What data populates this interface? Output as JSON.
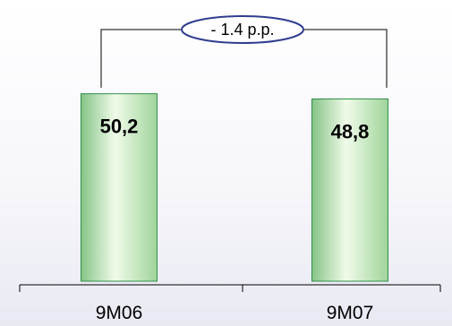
{
  "chart_data": {
    "type": "bar",
    "categories": [
      "9M06",
      "9M07"
    ],
    "values": [
      50.2,
      48.8
    ],
    "value_labels": [
      "50,2",
      "48,8"
    ],
    "ylim": [
      0,
      60
    ],
    "grid": false,
    "legend": "none",
    "annotation": {
      "text": "- 1.4 p.p.",
      "between": [
        "9M06",
        "9M07"
      ]
    },
    "colors": {
      "bar_light": "#f0fbe9",
      "bar_mid": "#b9e6a6",
      "bar_dark": "#86c487",
      "bar_edge": "#2f8f4a",
      "annotation_ellipse": "#2f3d8f"
    }
  }
}
